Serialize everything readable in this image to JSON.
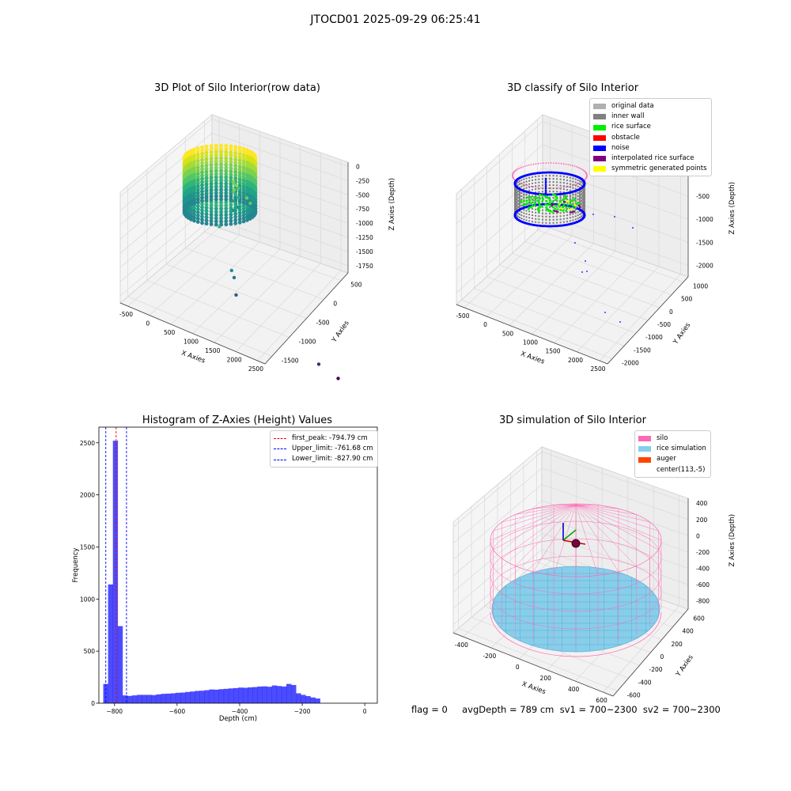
{
  "figure": {
    "suptitle": "JTOCD01 2025-09-29 06:25:41"
  },
  "status_line": "flag = 0     avgDepth = 789 cm  sv1 = 700~2300  sv2 = 700~2300",
  "chart_data": [
    {
      "type": "scatter3d",
      "title": "3D Plot of Silo Interior(row data)",
      "xlabel": "X Axies",
      "ylabel": "Y Axies",
      "zlabel": "Z Axies (Depth)",
      "xticks": [
        "-500",
        "0",
        "500",
        "1000",
        "1500",
        "2000",
        "2500"
      ],
      "yticks": [
        "500",
        "0",
        "-500",
        "-1000",
        "-1500"
      ],
      "zticks": [
        "0",
        "-250",
        "-500",
        "-750",
        "-1000",
        "-1250",
        "-1500",
        "-1750"
      ],
      "colormap": "viridis",
      "points": [
        {
          "x": 700,
          "y": 200,
          "z": -620,
          "color": "#7ad151"
        },
        {
          "x": 900,
          "y": 150,
          "z": -680,
          "color": "#6ccd5a"
        },
        {
          "x": 950,
          "y": 120,
          "z": -720,
          "color": "#5ec962"
        },
        {
          "x": 400,
          "y": 0,
          "z": -900,
          "color": "#35b779"
        },
        {
          "x": 550,
          "y": -200,
          "z": -1250,
          "color": "#21918c"
        },
        {
          "x": 580,
          "y": -250,
          "z": -1300,
          "color": "#2c728e"
        },
        {
          "x": 600,
          "y": -300,
          "z": -1450,
          "color": "#3b528b"
        },
        {
          "x": 1700,
          "y": -1400,
          "z": -1700,
          "color": "#482878"
        },
        {
          "x": 2000,
          "y": -1500,
          "z": -1800,
          "color": "#440154"
        }
      ]
    },
    {
      "type": "scatter3d",
      "title": "3D classify of Silo Interior",
      "xlabel": "X Axies",
      "ylabel": "Y Axies",
      "zlabel": "Z Axies (Depth)",
      "xticks": [
        "-500",
        "0",
        "500",
        "1000",
        "1500",
        "2000",
        "2500"
      ],
      "yticks": [
        "1000",
        "500",
        "0",
        "-500",
        "-1000",
        "-1500",
        "-2000"
      ],
      "zticks": [
        "0",
        "-500",
        "-1000",
        "-1500",
        "-2000"
      ],
      "legend": [
        {
          "label": "original data",
          "color": "#b0b0b0"
        },
        {
          "label": "inner wall",
          "color": "#808080"
        },
        {
          "label": "rice surface",
          "color": "#00ee00"
        },
        {
          "label": "obstacle",
          "color": "#ff0000"
        },
        {
          "label": "noise",
          "color": "#0000ff"
        },
        {
          "label": "interpolated rice surface",
          "color": "#800080"
        },
        {
          "label": "symmetric generated points",
          "color": "#ffff00"
        }
      ]
    },
    {
      "type": "histogram",
      "title": "Histogram of Z-Axies (Height) Values",
      "xlabel": "Depth (cm)",
      "ylabel": "Frequency",
      "xlim": [
        -850,
        40
      ],
      "ylim": [
        0,
        2650
      ],
      "xticks": [
        -800,
        -600,
        -400,
        -200,
        0
      ],
      "yticks": [
        0,
        500,
        1000,
        1500,
        2000,
        2500
      ],
      "bar_color": "#0000ff",
      "bin_left": -836,
      "bin_width": 15.4,
      "values": [
        185,
        1140,
        2520,
        740,
        75,
        70,
        75,
        80,
        80,
        80,
        78,
        85,
        90,
        92,
        95,
        100,
        102,
        108,
        112,
        118,
        120,
        125,
        132,
        130,
        135,
        138,
        142,
        145,
        150,
        148,
        152,
        155,
        160,
        162,
        158,
        170,
        165,
        160,
        185,
        175,
        95,
        80,
        68,
        55,
        45
      ],
      "vlines": [
        {
          "label": "first_peak: -794.79 cm",
          "x": -794.79,
          "color": "#ff0000"
        },
        {
          "label": "Upper_limit: -761.68 cm",
          "x": -761.68,
          "color": "#0000ff"
        },
        {
          "label": "Lower_limit: -827.90 cm",
          "x": -827.9,
          "color": "#0000ff"
        }
      ]
    },
    {
      "type": "surface3d",
      "title": "3D simulation of Silo Interior",
      "xlabel": "X Axies",
      "ylabel": "Y Axies",
      "zlabel": "Z Axies (Depth)",
      "xticks": [
        "-400",
        "-200",
        "0",
        "200",
        "400",
        "600"
      ],
      "yticks": [
        "600",
        "400",
        "200",
        "0",
        "-200",
        "-400",
        "-600"
      ],
      "zticks": [
        "400",
        "200",
        "0",
        "-200",
        "-400",
        "-600",
        "-800"
      ],
      "legend": [
        {
          "label": "silo",
          "color": "#ff69b4"
        },
        {
          "label": "rice simulation",
          "color": "#87ceeb"
        },
        {
          "label": "auger",
          "color": "#ff4500"
        },
        {
          "label": "center(113,-5)",
          "color": ""
        }
      ]
    }
  ]
}
